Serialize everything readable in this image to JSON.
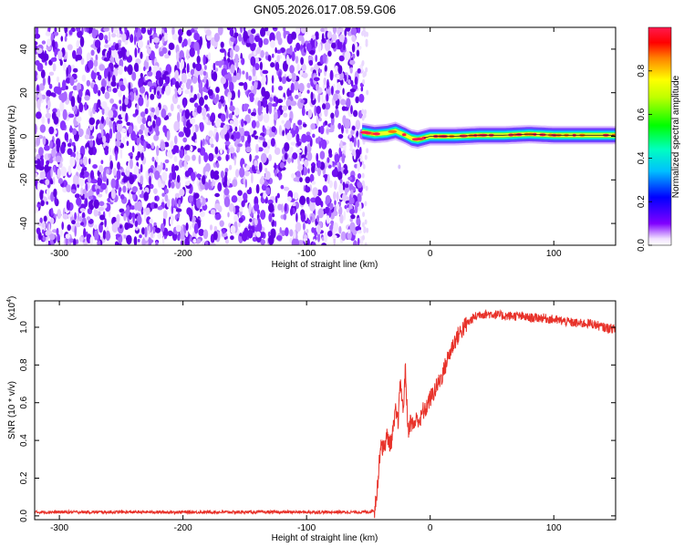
{
  "figure": {
    "title": "GN05.2026.017.08.59.G06"
  },
  "chart_data": [
    {
      "type": "heatmap",
      "xlabel": "Height of straight line (km)",
      "ylabel": "Frequency (Hz)",
      "xlim": [
        -320,
        150
      ],
      "ylim": [
        -50,
        50
      ],
      "xticks": [
        "-300",
        "-200",
        "-100",
        "0",
        "100"
      ],
      "xtick_values": [
        -300,
        -200,
        -100,
        0,
        100
      ],
      "yticks": [
        "-40",
        "-20",
        "0",
        "20",
        "40"
      ],
      "ytick_values": [
        -40,
        -20,
        0,
        20,
        40
      ],
      "noise_region_x": [
        -320,
        -55
      ],
      "signal_x": [
        -55,
        150
      ],
      "signal_freq_center": 0,
      "signal_track": {
        "x": [
          -55,
          -45,
          -35,
          -28,
          -20,
          -15,
          -10,
          0,
          20,
          40,
          60,
          80,
          100,
          120,
          150
        ],
        "freq": [
          2,
          1,
          1.5,
          2.5,
          0.5,
          -1,
          -1.5,
          0,
          0,
          0.5,
          0.5,
          1,
          0.5,
          0.5,
          0.5
        ]
      },
      "colorbar": {
        "label": "Normalized spectral amplitude",
        "range": [
          0,
          1
        ],
        "ticks": [
          "0.0",
          "0.2",
          "0.4",
          "0.6",
          "0.8"
        ],
        "tick_values": [
          0.0,
          0.2,
          0.4,
          0.6,
          0.8
        ],
        "colormap": [
          "#ff00ff",
          "#8000ff",
          "#0000ff",
          "#00ffff",
          "#00ff00",
          "#ffff00",
          "#ff8000",
          "#ff0000",
          "#ff1a4f"
        ]
      },
      "grid": false
    },
    {
      "type": "line",
      "xlabel": "Height of straight line (km)",
      "ylabel": "SNR (10 * v/v)",
      "y_multiplier": "(x10",
      "y_multiplier_exp": "4",
      "y_multiplier_close": ")",
      "xlim": [
        -320,
        150
      ],
      "ylim": [
        -0.02,
        1.14
      ],
      "xticks": [
        "-300",
        "-200",
        "-100",
        "0",
        "100"
      ],
      "xtick_values": [
        -300,
        -200,
        -100,
        0,
        100
      ],
      "yticks": [
        "0.0",
        "0.2",
        "0.4",
        "0.6",
        "0.8",
        "1.0"
      ],
      "ytick_values": [
        0.0,
        0.2,
        0.4,
        0.6,
        0.8,
        1.0
      ],
      "line_color": "#e8322a",
      "series": [
        {
          "x": [
            -320,
            -300,
            -250,
            -200,
            -150,
            -100,
            -60,
            -50,
            -45,
            -42,
            -40,
            -38,
            -35,
            -32,
            -30,
            -28,
            -26,
            -24,
            -22,
            -20,
            -18,
            -16,
            -14,
            -12,
            -10,
            -8,
            -6,
            -4,
            -2,
            0,
            5,
            10,
            15,
            20,
            25,
            30,
            35,
            40,
            50,
            60,
            70,
            80,
            90,
            100,
            110,
            120,
            130,
            140,
            150
          ],
          "y": [
            0.02,
            0.02,
            0.02,
            0.02,
            0.02,
            0.02,
            0.02,
            0.02,
            0.03,
            0.2,
            0.4,
            0.35,
            0.42,
            0.38,
            0.45,
            0.55,
            0.5,
            0.72,
            0.55,
            0.78,
            0.45,
            0.5,
            0.48,
            0.5,
            0.52,
            0.5,
            0.56,
            0.55,
            0.6,
            0.62,
            0.68,
            0.75,
            0.85,
            0.93,
            0.98,
            1.02,
            1.05,
            1.07,
            1.07,
            1.06,
            1.06,
            1.05,
            1.05,
            1.04,
            1.03,
            1.02,
            1.02,
            1.0,
            0.99
          ]
        }
      ],
      "grid": false
    }
  ]
}
